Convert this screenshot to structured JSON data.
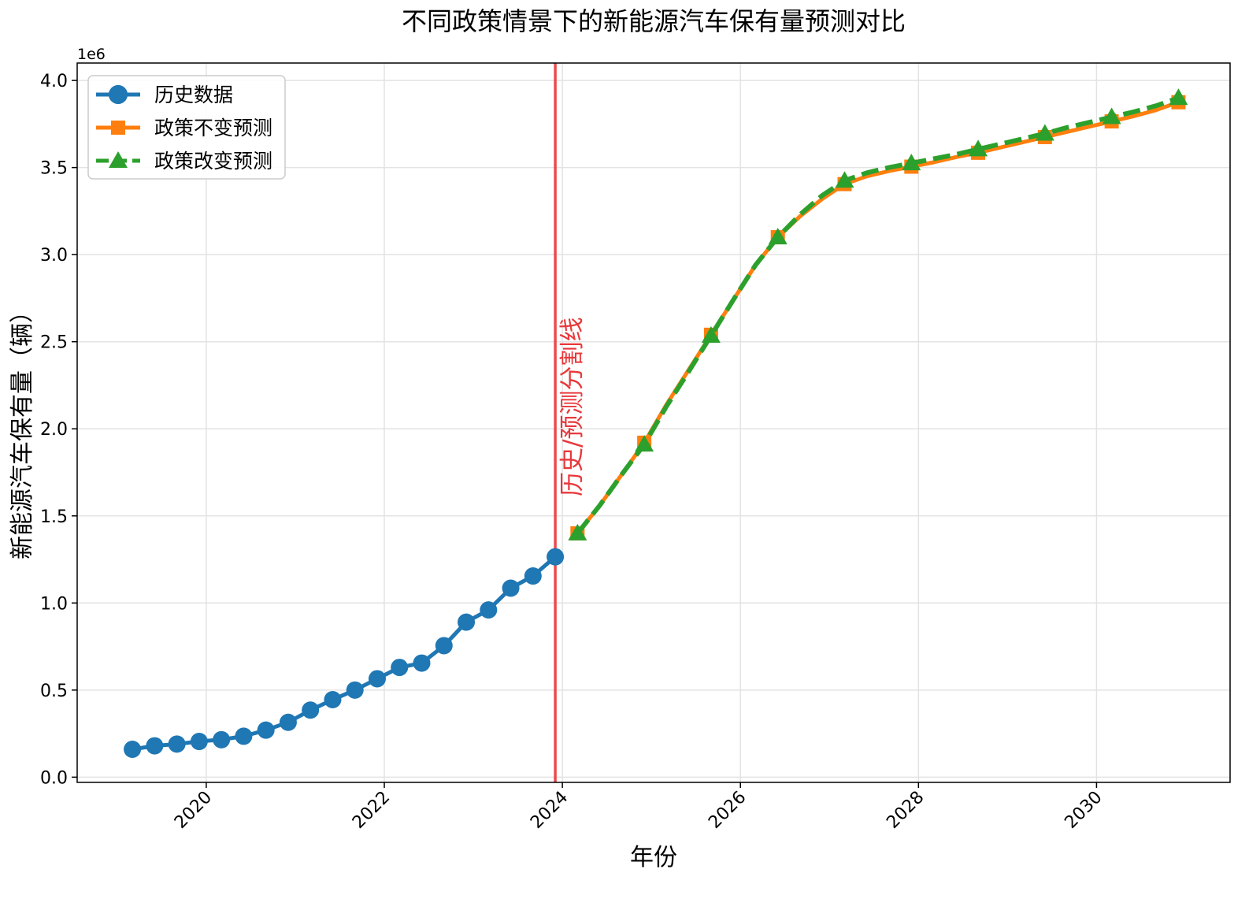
{
  "chart_data": {
    "type": "line",
    "title": "不同政策情景下的新能源汽车保有量预测对比",
    "xlabel": "年份",
    "ylabel": "新能源汽车保有量（辆）",
    "y_scale_label": "1e6",
    "xlim": [
      2018.55,
      2031.5
    ],
    "ylim": [
      -0.03,
      4.1
    ],
    "y_unit_multiplier": 1000000,
    "x_ticks": [
      2020,
      2022,
      2024,
      2026,
      2028,
      2030
    ],
    "y_ticks": [
      0.0,
      0.5,
      1.0,
      1.5,
      2.0,
      2.5,
      3.0,
      3.5,
      4.0
    ],
    "y_tick_labels": [
      "0.0",
      "0.5",
      "1.0",
      "1.5",
      "2.0",
      "2.5",
      "3.0",
      "3.5",
      "4.0"
    ],
    "grid": true,
    "legend_position": "top-left",
    "divider": {
      "x": 2023.92,
      "label": "历史/预测分割线",
      "color": "#e8383b"
    },
    "series": [
      {
        "name": "历史数据",
        "color": "#1f77b4",
        "marker": "circle",
        "line": "solid",
        "x": [
          2019.17,
          2019.42,
          2019.67,
          2019.92,
          2020.17,
          2020.42,
          2020.67,
          2020.92,
          2021.17,
          2021.42,
          2021.67,
          2021.92,
          2022.17,
          2022.42,
          2022.67,
          2022.92,
          2023.17,
          2023.42,
          2023.67,
          2023.92
        ],
        "y": [
          0.16,
          0.18,
          0.19,
          0.205,
          0.215,
          0.235,
          0.27,
          0.315,
          0.385,
          0.445,
          0.5,
          0.565,
          0.63,
          0.655,
          0.755,
          0.89,
          0.96,
          1.085,
          1.155,
          1.265
        ]
      },
      {
        "name": "政策不变预测",
        "color": "#ff7f0e",
        "marker": "square",
        "line": "solid",
        "x": [
          2024.17,
          2024.42,
          2024.67,
          2024.92,
          2025.17,
          2025.42,
          2025.67,
          2025.92,
          2026.17,
          2026.42,
          2026.67,
          2026.92,
          2027.17,
          2027.42,
          2027.67,
          2027.92,
          2028.17,
          2028.42,
          2028.67,
          2028.92,
          2029.17,
          2029.42,
          2029.67,
          2029.92,
          2030.17,
          2030.42,
          2030.67,
          2030.92
        ],
        "y": [
          1.4,
          1.56,
          1.74,
          1.92,
          2.14,
          2.34,
          2.54,
          2.74,
          2.94,
          3.1,
          3.22,
          3.32,
          3.405,
          3.45,
          3.48,
          3.505,
          3.53,
          3.56,
          3.585,
          3.615,
          3.645,
          3.675,
          3.705,
          3.735,
          3.765,
          3.795,
          3.83,
          3.875
        ],
        "marker_every": 3
      },
      {
        "name": "政策改变预测",
        "color": "#2ca02c",
        "marker": "triangle",
        "line": "dashed",
        "x": [
          2024.17,
          2024.42,
          2024.67,
          2024.92,
          2025.17,
          2025.42,
          2025.67,
          2025.92,
          2026.17,
          2026.42,
          2026.67,
          2026.92,
          2027.17,
          2027.42,
          2027.67,
          2027.92,
          2028.17,
          2028.42,
          2028.67,
          2028.92,
          2029.17,
          2029.42,
          2029.67,
          2029.92,
          2030.17,
          2030.42,
          2030.67,
          2030.92
        ],
        "y": [
          1.4,
          1.56,
          1.74,
          1.91,
          2.13,
          2.33,
          2.535,
          2.74,
          2.94,
          3.1,
          3.23,
          3.34,
          3.425,
          3.47,
          3.5,
          3.525,
          3.55,
          3.575,
          3.605,
          3.635,
          3.665,
          3.695,
          3.73,
          3.76,
          3.79,
          3.82,
          3.855,
          3.9
        ],
        "marker_every": 3
      }
    ]
  }
}
